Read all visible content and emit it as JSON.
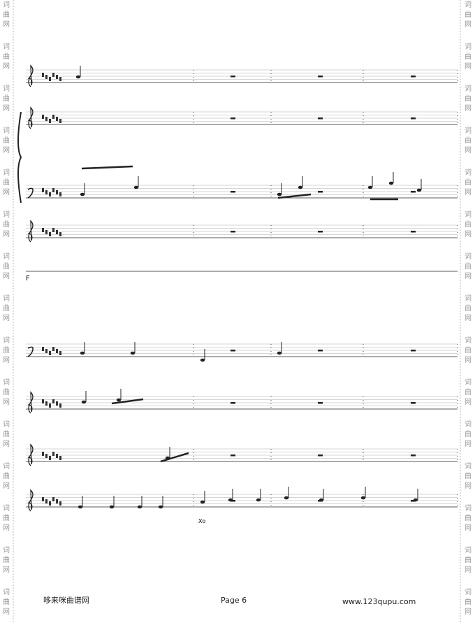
{
  "watermark": "词曲网",
  "section_mark": "F",
  "annotation": "Xo",
  "footer": {
    "site_name": "哆来咪曲谱网",
    "page": "Page 6",
    "url": "www.123qupu.com"
  }
}
